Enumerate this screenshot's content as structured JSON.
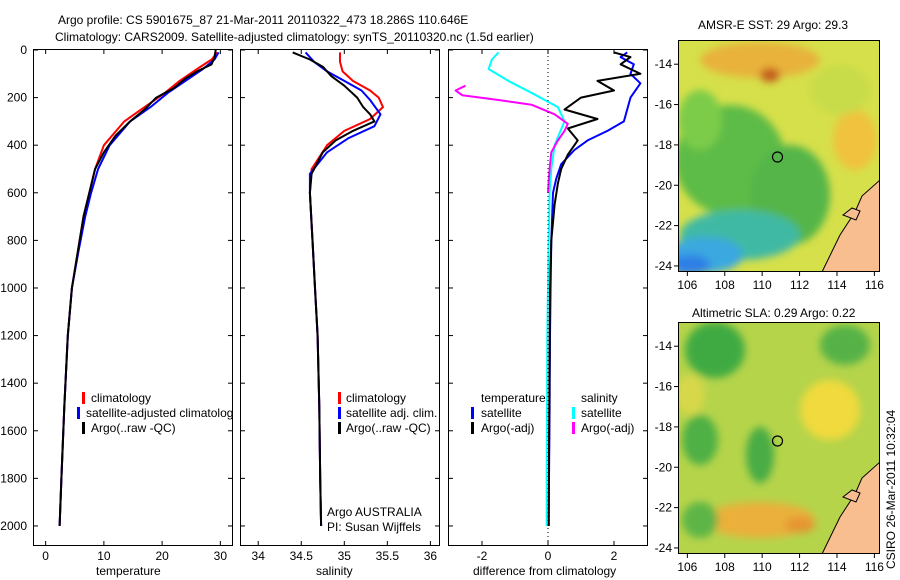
{
  "title_line1": "Argo profile: CS 5901675_87 21-Mar-2011 20110322_473 18.286S 110.646E",
  "title_line2": "Climatology: CARS2009. Satellite-adjusted climatology: synTS_20110320.nc (1.5d earlier)",
  "side_label": "CSIRO 26-Mar-2011 10:32:04",
  "colors": {
    "red": "#ff0000",
    "blue": "#0000ff",
    "black": "#000000",
    "cyan": "#00ffff",
    "magenta": "#ff00ff"
  },
  "chart_data": [
    {
      "type": "line",
      "name": "temperature",
      "xlabel": "temperature",
      "xlim": [
        -2,
        32
      ],
      "ylim": [
        0,
        2080
      ],
      "xticks": [
        0,
        10,
        20,
        30
      ],
      "yticks": [
        0,
        200,
        400,
        600,
        800,
        1000,
        1200,
        1400,
        1600,
        1800,
        2000
      ],
      "legend": [
        "climatology",
        "satellite-adjusted climatolog",
        "Argo(..raw -QC)"
      ],
      "series": [
        {
          "name": "climatology",
          "color": "red",
          "x": [
            29.5,
            28.5,
            26,
            23,
            20.5,
            17,
            13.5,
            10,
            8.5,
            7.5,
            6.5,
            5.5,
            4.5,
            3.8,
            3.2,
            2.7,
            2.4
          ],
          "y": [
            10,
            40,
            80,
            130,
            180,
            240,
            300,
            400,
            500,
            600,
            700,
            850,
            1000,
            1200,
            1500,
            1800,
            2000
          ]
        },
        {
          "name": "satellite adjusted",
          "color": "blue",
          "x": [
            29.7,
            29,
            27,
            24,
            21,
            18,
            14.5,
            11,
            9,
            7.8,
            6.8,
            5.6,
            4.5,
            3.8,
            3.2,
            2.7,
            2.4
          ],
          "y": [
            10,
            40,
            80,
            130,
            180,
            240,
            300,
            400,
            500,
            600,
            700,
            850,
            1000,
            1200,
            1500,
            1800,
            2000
          ]
        },
        {
          "name": "Argo",
          "color": "black",
          "x": [
            29.2,
            29,
            28.5,
            26,
            24,
            22,
            19,
            17,
            14.5,
            12,
            10,
            8.5,
            7.5,
            6.5,
            5.5,
            4.5,
            3.8,
            3.2,
            2.7,
            2.4
          ],
          "y": [
            0,
            30,
            60,
            90,
            120,
            160,
            200,
            250,
            300,
            360,
            430,
            500,
            600,
            700,
            850,
            1000,
            1200,
            1500,
            1800,
            2000
          ]
        }
      ]
    },
    {
      "type": "line",
      "name": "salinity",
      "xlabel": "salinity",
      "xlim": [
        33.8,
        36.1
      ],
      "ylim": [
        0,
        2080
      ],
      "xticks": [
        34,
        34.5,
        35,
        35.5,
        36
      ],
      "legend": [
        "climatology",
        "satellite adj. clim.",
        "Argo(..raw -QC)"
      ],
      "footer": [
        "Argo AUSTRALIA",
        "PI: Susan Wijffels"
      ],
      "series": [
        {
          "name": "climatology",
          "color": "red",
          "x": [
            34.95,
            34.95,
            34.98,
            35.1,
            35.3,
            35.4,
            35.45,
            35.3,
            35.0,
            34.8,
            34.62,
            34.6,
            34.63,
            34.66,
            34.69,
            34.71,
            34.72,
            34.73
          ],
          "y": [
            10,
            50,
            90,
            130,
            170,
            200,
            240,
            290,
            340,
            400,
            500,
            600,
            800,
            1000,
            1200,
            1500,
            1800,
            2000
          ]
        },
        {
          "name": "satellite adjusted",
          "color": "blue",
          "x": [
            34.55,
            34.65,
            34.8,
            35.0,
            35.2,
            35.3,
            35.42,
            35.35,
            35.05,
            34.8,
            34.6,
            34.6,
            34.63,
            34.66,
            34.69,
            34.71,
            34.72,
            34.73
          ],
          "y": [
            10,
            50,
            90,
            130,
            170,
            210,
            270,
            320,
            370,
            430,
            520,
            600,
            800,
            1000,
            1200,
            1500,
            1800,
            2000
          ]
        },
        {
          "name": "Argo",
          "color": "black",
          "x": [
            34.4,
            34.6,
            34.75,
            34.85,
            35.0,
            35.15,
            35.22,
            35.3,
            35.35,
            35.1,
            34.9,
            34.75,
            34.62,
            34.6,
            34.63,
            34.66,
            34.69,
            34.71,
            34.72,
            34.73
          ],
          "y": [
            10,
            40,
            70,
            110,
            150,
            200,
            240,
            270,
            300,
            340,
            380,
            430,
            520,
            600,
            800,
            1000,
            1200,
            1500,
            1800,
            2000
          ]
        }
      ]
    },
    {
      "type": "line",
      "name": "difference",
      "xlabel": "difference from climatology",
      "xlim": [
        -3,
        3
      ],
      "ylim": [
        0,
        2080
      ],
      "xticks": [
        -2,
        0,
        2
      ],
      "legend_left": [
        "temperature",
        "satellite",
        "Argo(-adj)"
      ],
      "legend_right": [
        "salinity",
        "satellite",
        "Argo(-adj)"
      ],
      "series": [
        {
          "name": "temp satellite",
          "color": "blue",
          "x": [
            2.4,
            2.2,
            2.6,
            2.5,
            2.8,
            2.5,
            2.4,
            2.3,
            1.8,
            1.2,
            0.8,
            0.4,
            0.25,
            0.15,
            0.1,
            0.08,
            0.06,
            0.05,
            0.03,
            0.02
          ],
          "y": [
            10,
            30,
            60,
            100,
            140,
            200,
            250,
            300,
            340,
            380,
            420,
            480,
            540,
            600,
            800,
            1000,
            1200,
            1500,
            1800,
            2000
          ]
        },
        {
          "name": "temp Argo",
          "color": "black",
          "x": [
            2.0,
            2.5,
            2.2,
            2.8,
            1.5,
            2.0,
            1.0,
            0.5,
            1.5,
            0.6,
            0.9,
            0.6,
            0.4,
            0.3,
            0.2,
            0.1,
            0.06,
            0.05,
            0.03,
            0.02
          ],
          "y": [
            10,
            30,
            60,
            100,
            130,
            170,
            200,
            250,
            290,
            330,
            380,
            440,
            500,
            560,
            650,
            800,
            1000,
            1300,
            1700,
            2000
          ]
        },
        {
          "name": "sal satellite",
          "color": "cyan",
          "x": [
            -1.5,
            -1.7,
            -1.8,
            -1.2,
            -0.5,
            0.3,
            0.5,
            0.35,
            0.2,
            0.1,
            0.05,
            0.02,
            0.0,
            -0.02,
            -0.03,
            -0.04,
            -0.04
          ],
          "y": [
            10,
            40,
            80,
            130,
            180,
            240,
            300,
            350,
            400,
            500,
            600,
            800,
            1000,
            1200,
            1500,
            1800,
            2000
          ]
        },
        {
          "name": "sal Argo",
          "color": "magenta",
          "x": [
            -2.5,
            -2.8,
            -2.6,
            -1.5,
            -0.5,
            0.2,
            0.6,
            0.5,
            0.3,
            0.1,
            0.05,
            0.02,
            0.0
          ],
          "y": [
            150,
            170,
            190,
            210,
            230,
            270,
            310,
            340,
            380,
            430,
            500,
            550,
            600
          ]
        }
      ]
    },
    {
      "type": "heatmap",
      "name": "sst_map",
      "title": "AMSR-E SST: 29 Argo: 29.3",
      "xlim": [
        105.5,
        116.3
      ],
      "ylim": [
        -24.3,
        -12.8
      ],
      "xticks": [
        106,
        108,
        110,
        112,
        114,
        116
      ],
      "yticks": [
        -14,
        -16,
        -18,
        -20,
        -22,
        -24
      ],
      "float": {
        "lon": 110.646,
        "lat": -18.286
      }
    },
    {
      "type": "heatmap",
      "name": "sla_map",
      "title": "Altimetric SLA: 0.29 Argo: 0.22",
      "xlim": [
        105.5,
        116.3
      ],
      "ylim": [
        -24.3,
        -12.8
      ],
      "xticks": [
        106,
        108,
        110,
        112,
        114,
        116
      ],
      "yticks": [
        -14,
        -16,
        -18,
        -20,
        -22,
        -24
      ],
      "float": {
        "lon": 110.646,
        "lat": -18.286
      }
    }
  ]
}
